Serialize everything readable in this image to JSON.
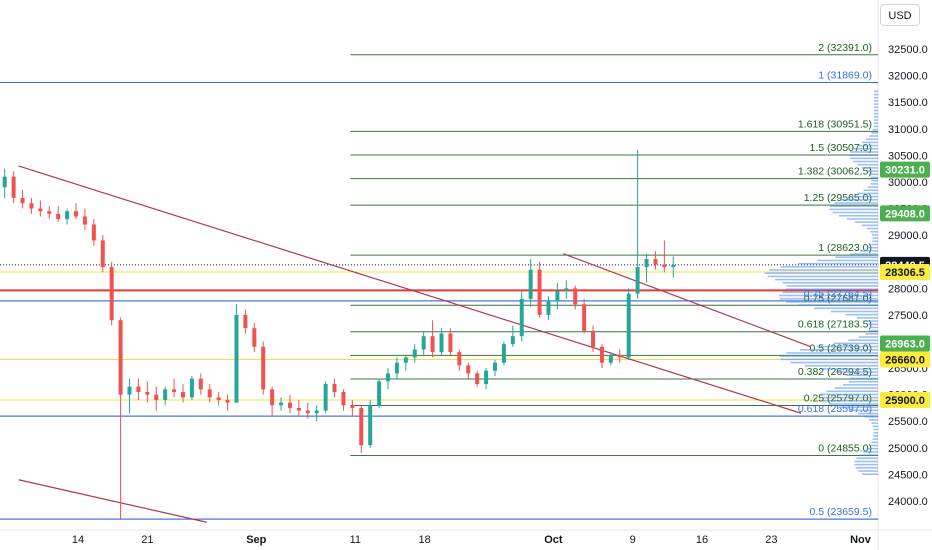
{
  "currency": "USD",
  "colors": {
    "candle_up": "#26a69a",
    "candle_down": "#ef5350",
    "fib_green": "#1b5e20",
    "fib_blue": "#3a6fd8",
    "trend_line": "#b0384e",
    "support_red": "#e53935",
    "support_yellow": "#f2e04b",
    "badge_green": "#4caf50",
    "badge_yellow": "#ffeb3b",
    "badge_black": "#131722",
    "volume_profile": "#4d8af0"
  },
  "chart_data": {
    "type": "candlestick",
    "ylim": [
      23659.5,
      32391.0
    ],
    "yticks": [
      "32500.0",
      "32000.0",
      "31500.0",
      "31000.0",
      "30500.0",
      "30000.0",
      "29500.0",
      "29000.0",
      "28500.0",
      "28000.0",
      "27500.0",
      "27000.0",
      "26500.0",
      "26000.0",
      "25500.0",
      "25000.0",
      "24500.0",
      "24000.0"
    ],
    "ytick_values": [
      32500,
      32000,
      31500,
      31000,
      30500,
      30000,
      29500,
      29000,
      28500,
      28000,
      27500,
      27000,
      26500,
      26000,
      25500,
      25000,
      24500,
      24000
    ],
    "xticks": [
      {
        "label": "14",
        "day": 0,
        "bold": false
      },
      {
        "label": "21",
        "day": 7,
        "bold": false
      },
      {
        "label": "Sep",
        "day": 18,
        "bold": true
      },
      {
        "label": "11",
        "day": 28,
        "bold": false
      },
      {
        "label": "18",
        "day": 35,
        "bold": false
      },
      {
        "label": "Oct",
        "day": 48,
        "bold": true
      },
      {
        "label": "9",
        "day": 56,
        "bold": false
      },
      {
        "label": "16",
        "day": 63,
        "bold": false
      },
      {
        "label": "23",
        "day": 70,
        "bold": false
      },
      {
        "label": "Nov",
        "day": 79,
        "bold": true
      }
    ],
    "fib_levels": [
      {
        "ratio": "2",
        "value": 32391.0,
        "label": "2 (32391.0)",
        "color": "green"
      },
      {
        "ratio": "1",
        "value": 31869.0,
        "label": "1 (31869.0)",
        "color": "blue"
      },
      {
        "ratio": "1.618",
        "value": 30951.5,
        "label": "1.618 (30951.5)",
        "color": "green"
      },
      {
        "ratio": "1.5",
        "value": 30507.0,
        "label": "1.5 (30507.0)",
        "color": "green"
      },
      {
        "ratio": "1.382",
        "value": 30062.5,
        "label": "1.382 (30062.5)",
        "color": "green"
      },
      {
        "ratio": "1.25",
        "value": 29565.0,
        "label": "1.25 (29565.0)",
        "color": "green"
      },
      {
        "ratio": "1",
        "value": 28623.0,
        "label": "1 (28623.0)",
        "color": "green"
      },
      {
        "ratio": "0.75",
        "value": 27764.5,
        "label": "0.75 (27764.5)",
        "color": "blue"
      },
      {
        "ratio": "0.75",
        "value": 27681.0,
        "label": "0.75 (27681.0)",
        "color": "green"
      },
      {
        "ratio": "0.618",
        "value": 27183.5,
        "label": "0.618 (27183.5)",
        "color": "green"
      },
      {
        "ratio": "0.5",
        "value": 26739.0,
        "label": "0.5 (26739.0)",
        "color": "green"
      },
      {
        "ratio": "0.382",
        "value": 26294.5,
        "label": "0.382 (26294.5)",
        "color": "green"
      },
      {
        "ratio": "0.25",
        "value": 25797.0,
        "label": "0.25 (25797.0)",
        "color": "green"
      },
      {
        "ratio": "0.618",
        "value": 25597.0,
        "label": "0.618 (25597.0)",
        "color": "blue"
      },
      {
        "ratio": "0",
        "value": 24855.0,
        "label": "0 (24855.0)",
        "color": "green"
      },
      {
        "ratio": "0.5",
        "value": 23659.5,
        "label": "0.5 (23659.5)",
        "color": "blue"
      }
    ],
    "price_badges": [
      {
        "value": 30231.0,
        "label": "30231.0",
        "color": "green"
      },
      {
        "value": 29408.0,
        "label": "29408.0",
        "color": "green"
      },
      {
        "value": 28440.5,
        "label": "28440.5",
        "color": "black"
      },
      {
        "value": 28306.5,
        "label": "28306.5",
        "color": "yellow"
      },
      {
        "value": 26963.0,
        "label": "26963.0",
        "color": "green"
      },
      {
        "value": 26660.0,
        "label": "26660.0",
        "color": "yellow"
      },
      {
        "value": 25900.0,
        "label": "25900.0",
        "color": "yellow"
      }
    ],
    "last_price": 28440.5,
    "candles_ohlc": [
      [
        29100,
        29250,
        28850,
        29050
      ],
      [
        29050,
        29200,
        28900,
        28950
      ],
      [
        28950,
        29600,
        28900,
        29500
      ],
      [
        29500,
        30000,
        29400,
        29900
      ],
      [
        29900,
        30250,
        29700,
        30100
      ],
      [
        30100,
        30200,
        29600,
        29700
      ],
      [
        29700,
        29850,
        29500,
        29600
      ],
      [
        29600,
        29700,
        29400,
        29500
      ],
      [
        29500,
        29650,
        29350,
        29450
      ],
      [
        29450,
        29550,
        29300,
        29400
      ],
      [
        29400,
        29550,
        29250,
        29300
      ],
      [
        29300,
        29500,
        29200,
        29450
      ],
      [
        29450,
        29600,
        29300,
        29350
      ],
      [
        29350,
        29500,
        29100,
        29200
      ],
      [
        29200,
        29300,
        28800,
        28900
      ],
      [
        28900,
        29000,
        28300,
        28400
      ],
      [
        28400,
        28500,
        27300,
        27400
      ],
      [
        27400,
        27450,
        23659,
        26000
      ],
      [
        26000,
        26300,
        25650,
        26150
      ],
      [
        26150,
        26300,
        25900,
        26050
      ],
      [
        26050,
        26250,
        25850,
        26000
      ],
      [
        26000,
        26150,
        25700,
        25900
      ],
      [
        25900,
        26150,
        25800,
        26100
      ],
      [
        26100,
        26300,
        25950,
        26050
      ],
      [
        26050,
        26200,
        25850,
        25950
      ],
      [
        25950,
        26350,
        25900,
        26300
      ],
      [
        26300,
        26400,
        26000,
        26100
      ],
      [
        26100,
        26200,
        25850,
        25950
      ],
      [
        25950,
        26050,
        25800,
        25900
      ],
      [
        25900,
        26000,
        25700,
        25850
      ],
      [
        25850,
        27700,
        25850,
        27500
      ],
      [
        27500,
        27600,
        27150,
        27250
      ],
      [
        27250,
        27350,
        26800,
        26900
      ],
      [
        26900,
        27000,
        26000,
        26100
      ],
      [
        26100,
        26150,
        25600,
        25800
      ],
      [
        25800,
        25950,
        25700,
        25850
      ],
      [
        25850,
        26000,
        25650,
        25750
      ],
      [
        25750,
        25900,
        25600,
        25700
      ],
      [
        25700,
        25850,
        25550,
        25650
      ],
      [
        25650,
        25800,
        25500,
        25700
      ],
      [
        25700,
        26250,
        25650,
        26200
      ],
      [
        26200,
        26300,
        25950,
        26050
      ],
      [
        26050,
        26100,
        25700,
        25800
      ],
      [
        25800,
        25900,
        25600,
        25750
      ],
      [
        25750,
        25800,
        24900,
        25050
      ],
      [
        25050,
        25900,
        25000,
        25800
      ],
      [
        25800,
        26300,
        25750,
        26250
      ],
      [
        26250,
        26500,
        26100,
        26400
      ],
      [
        26400,
        26700,
        26300,
        26600
      ],
      [
        26600,
        26750,
        26450,
        26700
      ],
      [
        26700,
        26950,
        26600,
        26850
      ],
      [
        26850,
        27200,
        26750,
        27100
      ],
      [
        27100,
        27400,
        26700,
        26800
      ],
      [
        26800,
        27250,
        26750,
        27150
      ],
      [
        27150,
        27250,
        26750,
        26800
      ],
      [
        26800,
        26850,
        26450,
        26550
      ],
      [
        26550,
        26600,
        26300,
        26400
      ],
      [
        26400,
        26450,
        26150,
        26200
      ],
      [
        26200,
        26500,
        26100,
        26450
      ],
      [
        26450,
        26650,
        26350,
        26600
      ],
      [
        26600,
        27000,
        26550,
        26950
      ],
      [
        26950,
        27300,
        26900,
        27100
      ],
      [
        27100,
        27950,
        27000,
        27800
      ],
      [
        27800,
        28550,
        27650,
        28350
      ],
      [
        28350,
        28500,
        27450,
        27500
      ],
      [
        27500,
        27850,
        27400,
        27750
      ],
      [
        27750,
        28100,
        27600,
        27950
      ],
      [
        27950,
        28150,
        27800,
        28000
      ],
      [
        28000,
        28050,
        27600,
        27700
      ],
      [
        27700,
        27800,
        27150,
        27200
      ],
      [
        27200,
        27300,
        26800,
        26900
      ],
      [
        26900,
        26950,
        26500,
        26600
      ],
      [
        26600,
        26800,
        26550,
        26750
      ],
      [
        26750,
        26850,
        26600,
        26700
      ],
      [
        26700,
        28000,
        26650,
        27900
      ],
      [
        27900,
        30600,
        27800,
        28400
      ],
      [
        28400,
        28650,
        28100,
        28550
      ],
      [
        28550,
        28700,
        28350,
        28450
      ],
      [
        28450,
        28900,
        28300,
        28400
      ],
      [
        28400,
        28600,
        28200,
        28440
      ]
    ],
    "candle_day_step": 0.9,
    "trend_lines": [
      {
        "from": [
          -6,
          30300
        ],
        "to": [
          73,
          25650
        ]
      },
      {
        "from": [
          -6,
          24400
        ],
        "to": [
          13,
          23600
        ]
      },
      {
        "from": [
          49,
          28650
        ],
        "to": [
          74,
          26900
        ]
      }
    ],
    "horizontal_levels": [
      {
        "value": 27960,
        "color": "red"
      },
      {
        "value": 28306.5,
        "color": "yellow"
      },
      {
        "value": 26660.0,
        "color": "yellow"
      },
      {
        "value": 25900.0,
        "color": "yellow"
      },
      {
        "value": 27764.5,
        "color": "blue"
      },
      {
        "value": 31869.0,
        "color": "blue"
      },
      {
        "value": 25597.0,
        "color": "blue"
      },
      {
        "value": 23659.5,
        "color": "blue"
      }
    ]
  }
}
